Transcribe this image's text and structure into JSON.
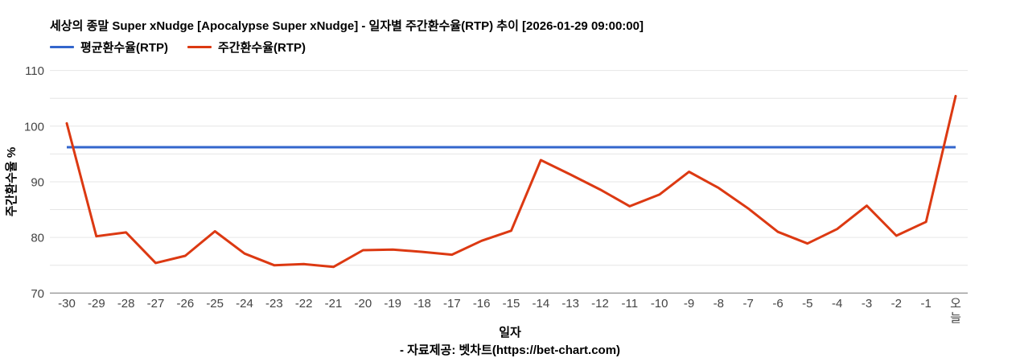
{
  "header": {
    "title": "세상의 종말 Super xNudge [Apocalypse Super xNudge] - 일자별 주간환수율(RTP) 추이 [2026-01-29 09:00:00]"
  },
  "footer": {
    "source_line": "- 자료제공: 벳차트(https://bet-chart.com)"
  },
  "chart_data": {
    "type": "line",
    "title": "세상의 종말 Super xNudge [Apocalypse Super xNudge] - 일자별 주간환수율(RTP) 추이 [2026-01-29 09:00:00]",
    "xlabel": "일자",
    "ylabel": "주간환수율 %",
    "ylim": [
      70,
      110
    ],
    "ytick_labeled": [
      70,
      80,
      90,
      100,
      110
    ],
    "ytick_step": 5,
    "grid": true,
    "legend_position": "top-left",
    "colors": {
      "grid": "#e6e6e6",
      "axis": "#757575",
      "tick_text": "#444444"
    },
    "categories": [
      "-30",
      "-29",
      "-28",
      "-27",
      "-26",
      "-25",
      "-24",
      "-23",
      "-22",
      "-21",
      "-20",
      "-19",
      "-18",
      "-17",
      "-16",
      "-15",
      "-14",
      "-13",
      "-12",
      "-11",
      "-10",
      "-9",
      "-8",
      "-7",
      "-6",
      "-5",
      "-4",
      "-3",
      "-2",
      "-1",
      "오늘"
    ],
    "series": [
      {
        "name": "평균환수율(RTP)",
        "color": "#3366cc",
        "style": "constant",
        "value": 96.2
      },
      {
        "name": "주간환수율(RTP)",
        "color": "#dc3912",
        "style": "line",
        "values": [
          100.5,
          80.2,
          80.9,
          75.4,
          76.7,
          81.1,
          77.1,
          75.0,
          75.2,
          74.7,
          77.7,
          77.8,
          77.4,
          76.9,
          79.4,
          81.2,
          93.9,
          91.3,
          88.6,
          85.6,
          87.7,
          91.8,
          88.9,
          85.2,
          81.0,
          78.9,
          81.5,
          85.7,
          80.3,
          82.8,
          105.4
        ]
      }
    ]
  }
}
